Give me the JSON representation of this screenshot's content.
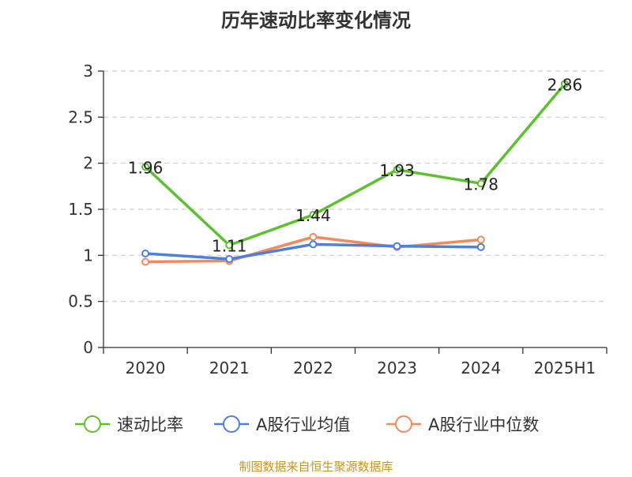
{
  "colors": {
    "title": "#333333",
    "axis": "#333333",
    "grid": "#cccccc",
    "source": "#c8941e"
  },
  "chart_data": {
    "type": "line",
    "title": "历年速动比率变化情况",
    "xlabel": "",
    "ylabel": "",
    "categories": [
      "2020",
      "2021",
      "2022",
      "2023",
      "2024",
      "2025H1"
    ],
    "ylim": [
      0,
      3
    ],
    "yticks": [
      0,
      0.5,
      1,
      1.5,
      2,
      2.5,
      3
    ],
    "ytick_labels": [
      "0",
      "0.5",
      "1",
      "1.5",
      "2",
      "2.5",
      "3"
    ],
    "grid": "horizontal dashed",
    "legend_position": "bottom",
    "series": [
      {
        "name": "速动比率",
        "color": "#5dc12e",
        "values": [
          1.96,
          1.11,
          1.44,
          1.93,
          1.78,
          2.86
        ],
        "labels": [
          "1.96",
          "1.11",
          "1.44",
          "1.93",
          "1.78",
          "2.86"
        ],
        "show_labels": true
      },
      {
        "name": "A股行业均值",
        "color": "#4f7fdc",
        "values": [
          1.02,
          0.96,
          1.12,
          1.1,
          1.09,
          null
        ],
        "show_labels": false
      },
      {
        "name": "A股行业中位数",
        "color": "#f48a5b",
        "values": [
          0.93,
          0.94,
          1.2,
          1.09,
          1.17,
          null
        ],
        "show_labels": false
      }
    ]
  },
  "source": "制图数据来自恒生聚源数据库"
}
